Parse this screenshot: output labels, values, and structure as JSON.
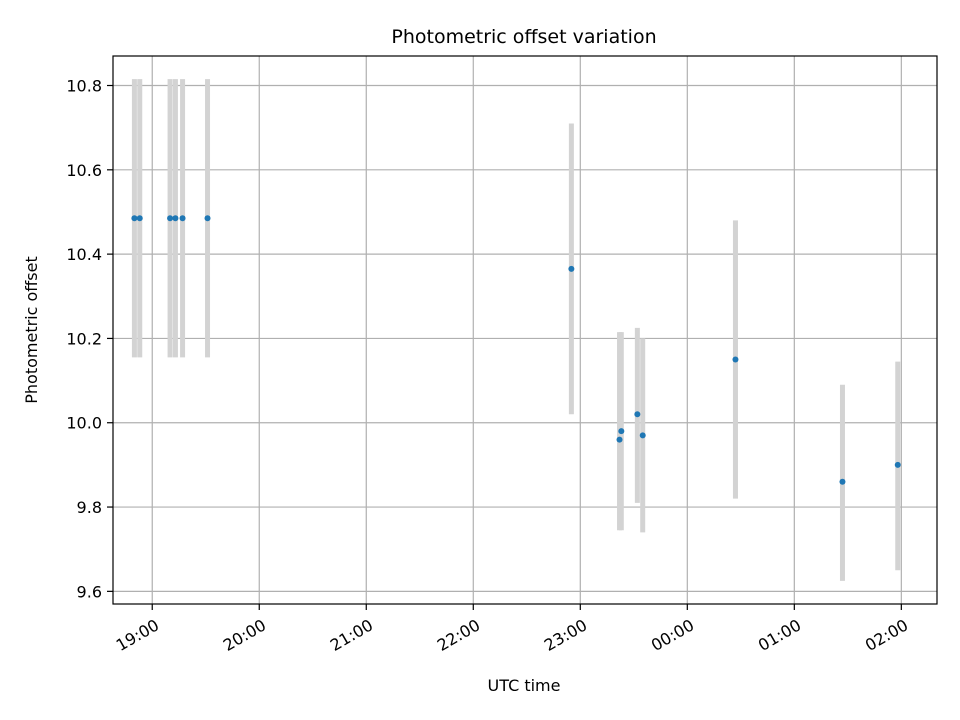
{
  "chart_data": {
    "type": "scatter",
    "title": "Photometric offset variation",
    "xlabel": "UTC time",
    "ylabel": "Photometric offset",
    "x_tick_labels": [
      "19:00",
      "20:00",
      "21:00",
      "22:00",
      "23:00",
      "00:00",
      "01:00",
      "02:00"
    ],
    "y_tick_labels": [
      "9.6",
      "9.8",
      "10.0",
      "10.2",
      "10.4",
      "10.6",
      "10.8"
    ],
    "ylim": [
      9.57,
      10.87
    ],
    "xlim": [
      "18:38",
      "02:20"
    ],
    "grid": true,
    "points": [
      {
        "x": "18:50",
        "y": 10.485,
        "ylow": 10.155,
        "yhigh": 10.815
      },
      {
        "x": "18:53",
        "y": 10.485,
        "ylow": 10.155,
        "yhigh": 10.815
      },
      {
        "x": "19:10",
        "y": 10.485,
        "ylow": 10.155,
        "yhigh": 10.815
      },
      {
        "x": "19:13",
        "y": 10.485,
        "ylow": 10.155,
        "yhigh": 10.815
      },
      {
        "x": "19:17",
        "y": 10.485,
        "ylow": 10.155,
        "yhigh": 10.815
      },
      {
        "x": "19:31",
        "y": 10.485,
        "ylow": 10.155,
        "yhigh": 10.815
      },
      {
        "x": "22:55",
        "y": 10.365,
        "ylow": 10.02,
        "yhigh": 10.71
      },
      {
        "x": "23:22",
        "y": 9.96,
        "ylow": 9.745,
        "yhigh": 10.215
      },
      {
        "x": "23:23",
        "y": 9.98,
        "ylow": 9.745,
        "yhigh": 10.215
      },
      {
        "x": "23:32",
        "y": 10.02,
        "ylow": 9.81,
        "yhigh": 10.225
      },
      {
        "x": "23:35",
        "y": 9.97,
        "ylow": 9.74,
        "yhigh": 10.2
      },
      {
        "x": "00:27",
        "y": 10.15,
        "ylow": 9.82,
        "yhigh": 10.48
      },
      {
        "x": "01:27",
        "y": 9.86,
        "ylow": 9.625,
        "yhigh": 10.09
      },
      {
        "x": "01:58",
        "y": 9.9,
        "ylow": 9.65,
        "yhigh": 10.145
      }
    ],
    "colors": {
      "marker": "#1f77b4",
      "errorbar": "#d3d3d3",
      "grid": "#b0b0b0",
      "axes": "#000000"
    }
  }
}
